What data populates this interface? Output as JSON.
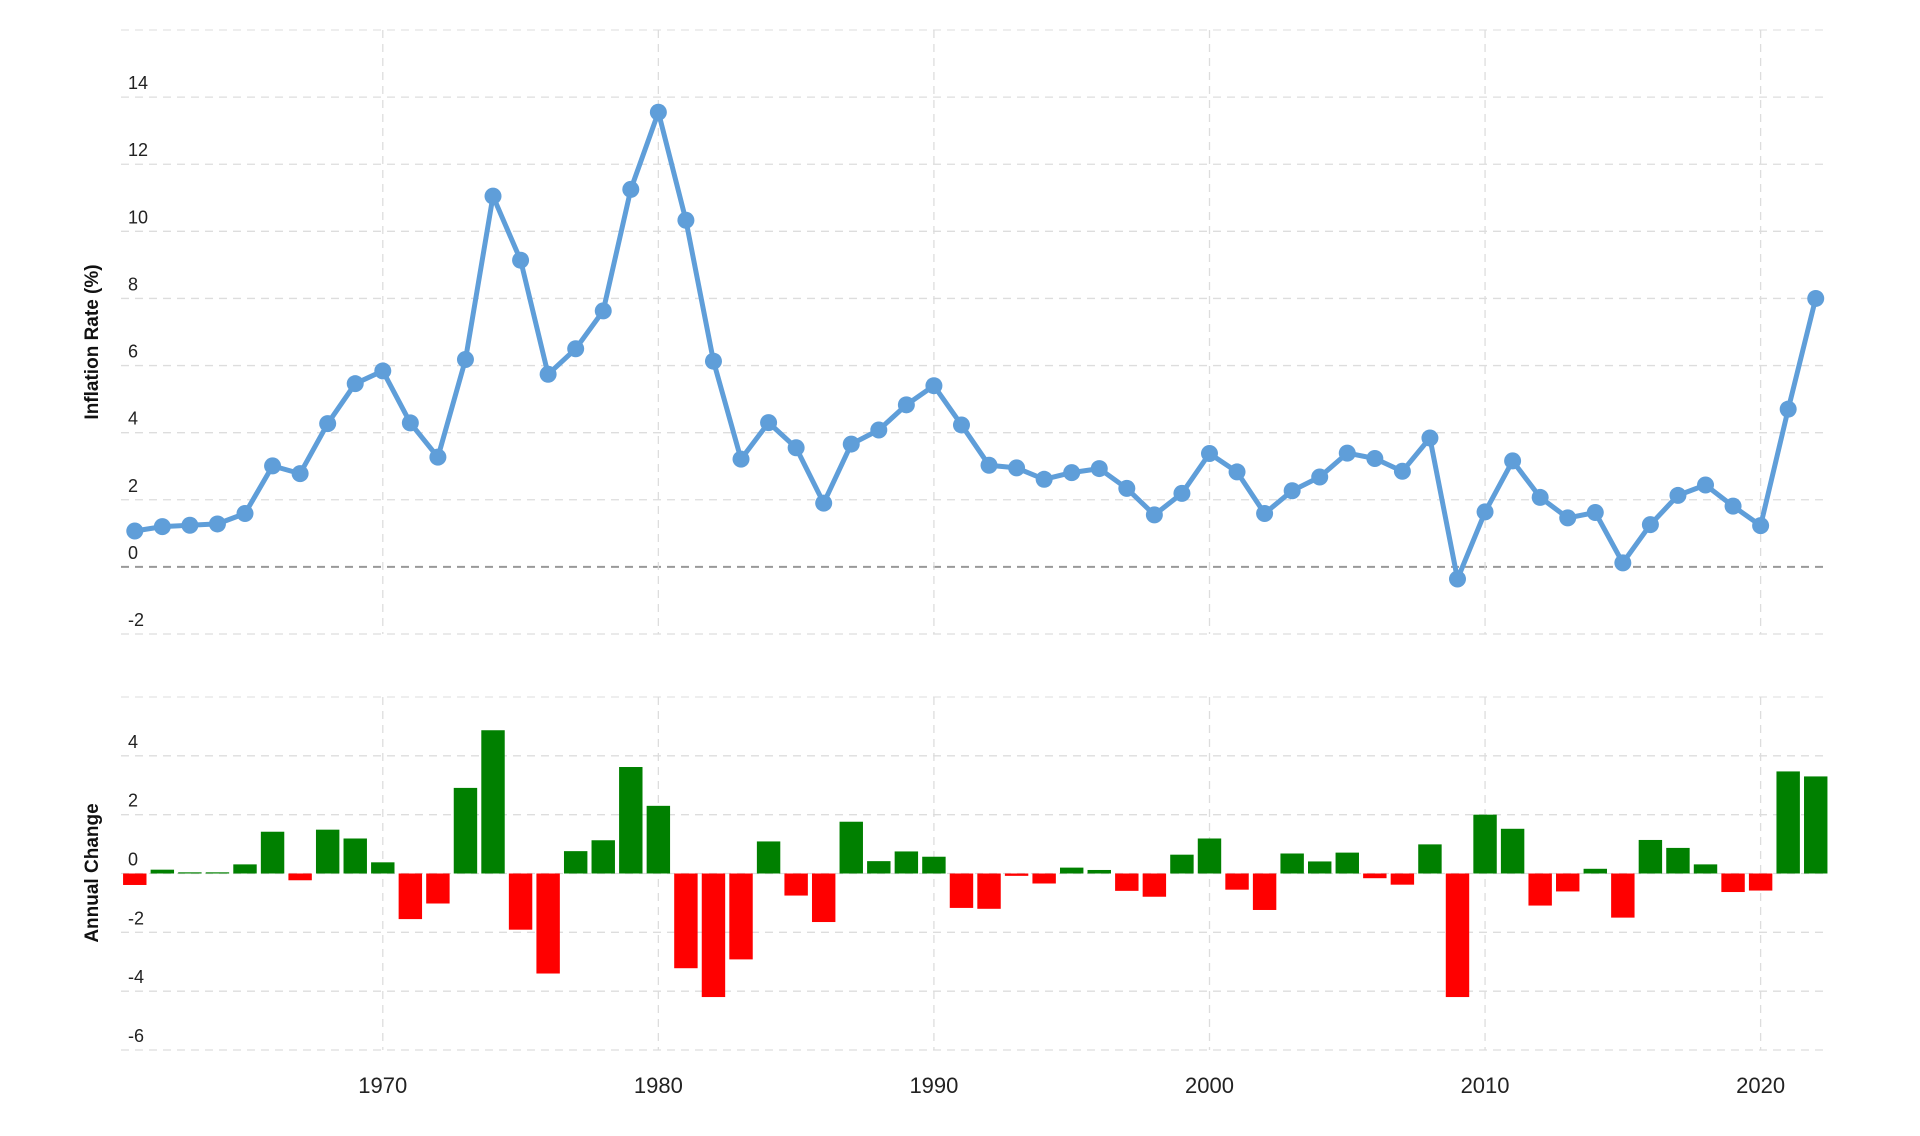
{
  "chart_data": [
    {
      "type": "line",
      "y_label": "Inflation Rate (%)",
      "color": "#5f9ed9",
      "grid": true,
      "x": [
        1961,
        1962,
        1963,
        1964,
        1965,
        1966,
        1967,
        1968,
        1969,
        1970,
        1971,
        1972,
        1973,
        1974,
        1975,
        1976,
        1977,
        1978,
        1979,
        1980,
        1981,
        1982,
        1983,
        1984,
        1985,
        1986,
        1987,
        1988,
        1989,
        1990,
        1991,
        1992,
        1993,
        1994,
        1995,
        1996,
        1997,
        1998,
        1999,
        2000,
        2001,
        2002,
        2003,
        2004,
        2005,
        2006,
        2007,
        2008,
        2009,
        2010,
        2011,
        2012,
        2013,
        2014,
        2015,
        2016,
        2017,
        2018,
        2019,
        2020,
        2021,
        2022
      ],
      "values": [
        1.07,
        1.2,
        1.24,
        1.28,
        1.59,
        3.01,
        2.78,
        4.27,
        5.46,
        5.84,
        4.29,
        3.27,
        6.18,
        11.05,
        9.14,
        5.74,
        6.5,
        7.63,
        11.25,
        13.55,
        10.33,
        6.13,
        3.21,
        4.3,
        3.55,
        1.9,
        3.66,
        4.08,
        4.83,
        5.4,
        4.23,
        3.03,
        2.95,
        2.61,
        2.81,
        2.93,
        2.34,
        1.55,
        2.19,
        3.38,
        2.83,
        1.59,
        2.27,
        2.68,
        3.39,
        3.23,
        2.85,
        3.84,
        -0.36,
        1.64,
        3.16,
        2.07,
        1.46,
        1.62,
        0.12,
        1.26,
        2.13,
        2.44,
        1.81,
        1.23,
        4.7,
        8.0
      ],
      "xlim": [
        1960.5,
        2022.3
      ],
      "xticks": [
        1970,
        1980,
        1990,
        2000,
        2010,
        2020
      ],
      "ylim": [
        -2,
        16
      ],
      "yticks": [
        -2,
        0,
        2,
        4,
        6,
        8,
        10,
        12,
        14
      ]
    },
    {
      "type": "bar",
      "y_label": "Annual Change",
      "positive_color": "#008000",
      "negative_color": "#ff0000",
      "grid": true,
      "x": [
        1961,
        1962,
        1963,
        1964,
        1965,
        1966,
        1967,
        1968,
        1969,
        1970,
        1971,
        1972,
        1973,
        1974,
        1975,
        1976,
        1977,
        1978,
        1979,
        1980,
        1981,
        1982,
        1983,
        1984,
        1985,
        1986,
        1987,
        1988,
        1989,
        1990,
        1991,
        1992,
        1993,
        1994,
        1995,
        1996,
        1997,
        1998,
        1999,
        2000,
        2001,
        2002,
        2003,
        2004,
        2005,
        2006,
        2007,
        2008,
        2009,
        2010,
        2011,
        2012,
        2013,
        2014,
        2015,
        2016,
        2017,
        2018,
        2019,
        2020,
        2021,
        2022
      ],
      "values": [
        -0.39,
        0.13,
        0.04,
        0.04,
        0.31,
        1.42,
        -0.23,
        1.49,
        1.19,
        0.38,
        -1.55,
        -1.02,
        2.91,
        4.87,
        -1.91,
        -3.4,
        0.76,
        1.13,
        3.62,
        2.3,
        -3.22,
        -4.2,
        -2.92,
        1.09,
        -0.75,
        -1.65,
        1.76,
        0.42,
        0.75,
        0.57,
        -1.17,
        -1.2,
        -0.08,
        -0.34,
        0.2,
        0.12,
        -0.59,
        -0.79,
        0.64,
        1.19,
        -0.55,
        -1.24,
        0.68,
        0.41,
        0.71,
        -0.16,
        -0.38,
        0.99,
        -4.2,
        2.0,
        1.52,
        -1.09,
        -0.61,
        0.16,
        -1.5,
        1.14,
        0.87,
        0.31,
        -0.63,
        -0.58,
        3.47,
        3.3
      ],
      "xlim": [
        1960.5,
        2022.3
      ],
      "xticks": [
        1970,
        1980,
        1990,
        2000,
        2010,
        2020
      ],
      "ylim": [
        -6,
        6
      ],
      "yticks": [
        -6,
        -4,
        -2,
        0,
        2,
        4
      ]
    }
  ]
}
